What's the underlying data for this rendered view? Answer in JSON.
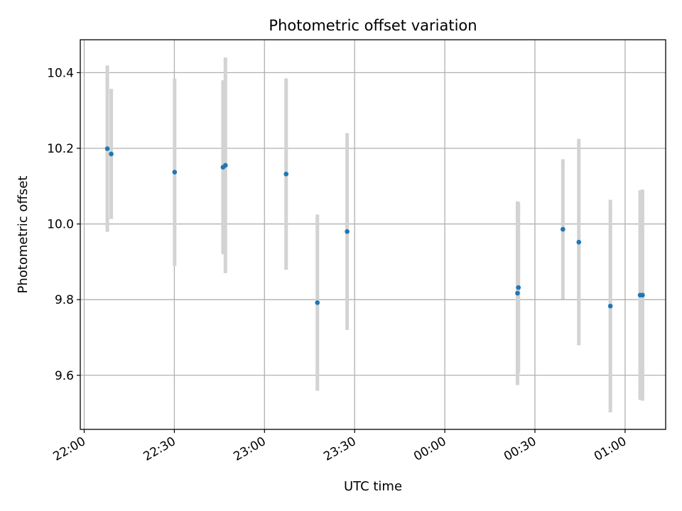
{
  "chart_data": {
    "type": "scatter",
    "title": "Photometric offset variation",
    "xlabel": "UTC time",
    "ylabel": "Photometric offset",
    "grid": true,
    "legend": "none",
    "x_ticks": [
      "22:00",
      "22:30",
      "23:00",
      "23:30",
      "00:00",
      "00:30",
      "01:00"
    ],
    "x_tick_minutes": [
      0,
      30,
      60,
      90,
      120,
      150,
      180
    ],
    "x_range_minutes": [
      -1.3,
      193.5
    ],
    "x_start_time": "22:00",
    "y_ticks": [
      "9.6",
      "9.8",
      "10.0",
      "10.2",
      "10.4"
    ],
    "y_tick_values": [
      9.6,
      9.8,
      10.0,
      10.2,
      10.4
    ],
    "ylim": [
      9.457,
      10.487
    ],
    "colors": {
      "point": "#1f77b4",
      "errorbar": "#d3d3d3",
      "grid": "#b0b0b0"
    },
    "points": [
      {
        "t": 7.7,
        "y": 10.199,
        "err": 0.22
      },
      {
        "t": 9.0,
        "y": 10.185,
        "err": 0.172
      },
      {
        "t": 30.1,
        "y": 10.137,
        "err": 0.248
      },
      {
        "t": 46.2,
        "y": 10.15,
        "err": 0.23
      },
      {
        "t": 47.0,
        "y": 10.155,
        "err": 0.285
      },
      {
        "t": 67.2,
        "y": 10.132,
        "err": 0.253
      },
      {
        "t": 77.6,
        "y": 9.792,
        "err": 0.233
      },
      {
        "t": 87.5,
        "y": 9.98,
        "err": 0.26
      },
      {
        "t": 144.2,
        "y": 9.817,
        "err": 0.243
      },
      {
        "t": 144.5,
        "y": 9.832,
        "err": 0.225
      },
      {
        "t": 159.3,
        "y": 9.986,
        "err": 0.185
      },
      {
        "t": 164.6,
        "y": 9.952,
        "err": 0.273
      },
      {
        "t": 175.1,
        "y": 9.783,
        "err": 0.281
      },
      {
        "t": 185.0,
        "y": 9.812,
        "err": 0.277
      },
      {
        "t": 185.8,
        "y": 9.812,
        "err": 0.279
      }
    ]
  }
}
